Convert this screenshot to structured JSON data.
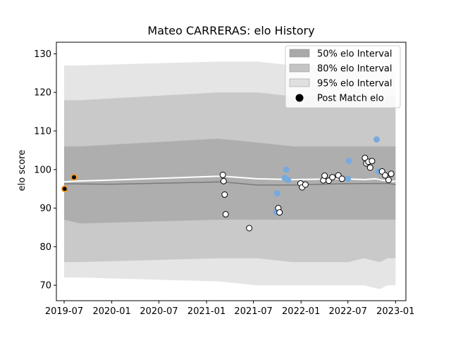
{
  "chart_data": {
    "type": "line",
    "title": "Mateo CARRERAS: elo History",
    "xlabel": "",
    "ylabel": "elo score",
    "xlim": [
      "2019-06-01",
      "2023-02-10"
    ],
    "ylim": [
      66,
      133
    ],
    "y_ticks": [
      70,
      80,
      90,
      100,
      110,
      120,
      130
    ],
    "x_ticks": [
      "2019-07",
      "2020-01",
      "2020-07",
      "2021-01",
      "2021-07",
      "2022-01",
      "2022-07",
      "2023-01"
    ],
    "grid": false,
    "legend_position": "upper right",
    "legend": [
      {
        "label": "50% elo Interval",
        "color": "#a9a9a9"
      },
      {
        "label": "80% elo Interval",
        "color": "#c4c4c4"
      },
      {
        "label": "95% elo Interval",
        "color": "#e0e0e0"
      },
      {
        "label": "Post Match elo",
        "color": "#000000"
      }
    ],
    "colors": {
      "mean_line": "#ffffff",
      "point_fill": "#ffffff",
      "point_edge": "#000000",
      "pre_match_point": "#77aadd",
      "first_points_fill": "#ff8c00"
    },
    "bands": {
      "x": [
        "2019-07-01",
        "2019-09-01",
        "2021-02-15",
        "2021-07-15",
        "2021-12-01",
        "2022-04-01",
        "2022-07-01",
        "2022-09-01",
        "2022-11-01",
        "2022-12-01",
        "2023-01-01"
      ],
      "p95": {
        "upper": [
          127,
          127,
          128,
          128,
          127,
          127,
          127,
          126,
          126,
          127,
          127
        ],
        "lower": [
          72,
          72,
          71,
          70,
          70,
          70,
          70,
          70,
          69,
          70,
          70
        ]
      },
      "p80": {
        "upper": [
          118,
          118,
          120,
          120,
          119,
          119,
          119,
          119,
          119,
          119,
          119
        ],
        "lower": [
          76,
          76,
          77,
          77,
          76,
          76,
          76,
          77,
          76,
          77,
          77
        ]
      },
      "p50": {
        "upper": [
          106,
          106,
          108,
          107,
          106,
          106,
          106,
          106,
          106,
          106,
          106
        ],
        "lower": [
          87,
          86,
          87,
          87,
          87,
          87,
          87,
          87,
          87,
          87,
          87
        ]
      }
    },
    "mean_line": {
      "x": [
        "2019-07-01",
        "2019-08-15",
        "2020-01-01",
        "2021-03-01",
        "2021-07-15",
        "2021-12-01",
        "2022-03-15",
        "2022-06-15",
        "2022-09-01",
        "2022-10-15",
        "2022-11-15",
        "2022-12-20",
        "2023-01-01"
      ],
      "y": [
        96.8,
        97.0,
        97.3,
        98.3,
        97.6,
        97.4,
        97.5,
        97.6,
        97.4,
        97.6,
        97.2,
        96.9,
        97.0
      ]
    },
    "median_line": {
      "x": [
        "2019-07-01",
        "2020-01-01",
        "2021-03-01",
        "2021-07-15",
        "2021-12-01",
        "2022-06-01",
        "2022-12-01",
        "2023-01-01"
      ],
      "y": [
        96.3,
        96.2,
        96.8,
        96.0,
        96.0,
        96.3,
        96.4,
        96.1
      ]
    },
    "series": [
      {
        "name": "Post Match elo",
        "points": [
          {
            "x": "2019-07-03",
            "y": 95.0,
            "first": true
          },
          {
            "x": "2019-08-08",
            "y": 98.0,
            "first": true
          },
          {
            "x": "2021-03-05",
            "y": 98.6
          },
          {
            "x": "2021-03-08",
            "y": 97.0
          },
          {
            "x": "2021-03-12",
            "y": 93.5
          },
          {
            "x": "2021-03-16",
            "y": 88.4
          },
          {
            "x": "2021-06-15",
            "y": 84.8
          },
          {
            "x": "2021-10-05",
            "y": 90.0
          },
          {
            "x": "2021-10-10",
            "y": 88.9
          },
          {
            "x": "2021-12-30",
            "y": 96.4
          },
          {
            "x": "2022-01-05",
            "y": 95.4
          },
          {
            "x": "2022-01-18",
            "y": 96.1
          },
          {
            "x": "2022-03-28",
            "y": 97.2
          },
          {
            "x": "2022-04-02",
            "y": 98.4
          },
          {
            "x": "2022-04-18",
            "y": 97.1
          },
          {
            "x": "2022-05-02",
            "y": 98.0
          },
          {
            "x": "2022-05-25",
            "y": 98.5
          },
          {
            "x": "2022-06-08",
            "y": 97.6
          },
          {
            "x": "2022-09-05",
            "y": 103.0
          },
          {
            "x": "2022-09-10",
            "y": 101.6
          },
          {
            "x": "2022-09-18",
            "y": 102.0
          },
          {
            "x": "2022-09-25",
            "y": 100.5
          },
          {
            "x": "2022-10-02",
            "y": 102.2
          },
          {
            "x": "2022-11-10",
            "y": 99.5
          },
          {
            "x": "2022-11-22",
            "y": 98.5
          },
          {
            "x": "2022-12-05",
            "y": 97.3
          },
          {
            "x": "2022-12-15",
            "y": 98.9
          }
        ]
      },
      {
        "name": "",
        "points": [
          {
            "x": "2021-09-28",
            "y": 89.0
          },
          {
            "x": "2021-10-01",
            "y": 93.8
          },
          {
            "x": "2021-10-30",
            "y": 97.8
          },
          {
            "x": "2021-11-05",
            "y": 100.0
          },
          {
            "x": "2021-11-12",
            "y": 97.3
          },
          {
            "x": "2022-07-01",
            "y": 97.6
          },
          {
            "x": "2022-07-05",
            "y": 102.2
          },
          {
            "x": "2022-10-20",
            "y": 107.8
          },
          {
            "x": "2022-10-28",
            "y": 99.5
          }
        ]
      }
    ]
  }
}
